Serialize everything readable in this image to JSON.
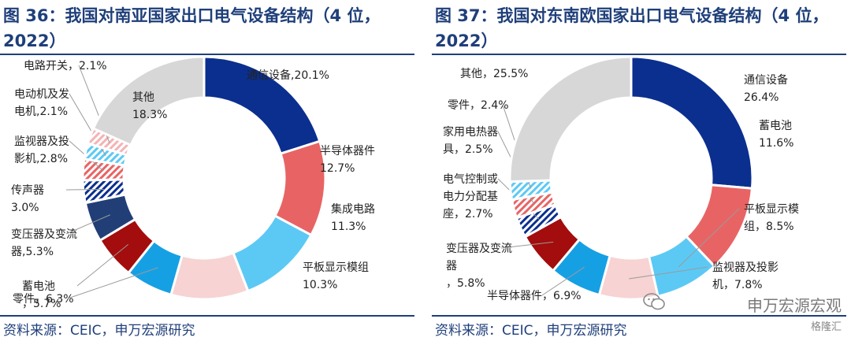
{
  "charts": [
    {
      "title": "图 36：我国对南亚国家出口电气设备结构（4 位，2022）",
      "source": "资料来源：CEIC，申万宏源研究",
      "chart_data": {
        "type": "donut",
        "slices": [
          {
            "label": "通信设备,20.1%",
            "value": 20.1,
            "color": "#0b2f8f",
            "pattern": false
          },
          {
            "label": "半导体器件 12.7%",
            "value": 12.7,
            "color": "#e86464",
            "pattern": false
          },
          {
            "label": "集成电路 11.3%",
            "value": 11.3,
            "color": "#5cc9f5",
            "pattern": false
          },
          {
            "label": "平板显示模组 10.3%",
            "value": 10.3,
            "color": "#f7d3d3",
            "pattern": false
          },
          {
            "label": "零件，6.3%",
            "value": 6.3,
            "color": "#16a0e4",
            "pattern": false
          },
          {
            "label": "蓄电池 ，5.7%",
            "value": 5.7,
            "color": "#a30d0d",
            "pattern": false
          },
          {
            "label": "变压器及变流 器,5.3%",
            "value": 5.3,
            "color": "#213f76",
            "pattern": false
          },
          {
            "label": "传声器 3.0%",
            "value": 3.0,
            "color": "#0b2f8f",
            "pattern": true
          },
          {
            "label": "监视器及投 影机,2.8%",
            "value": 2.8,
            "color": "#e86464",
            "pattern": true
          },
          {
            "label": "电动机及发 电机,2.1%",
            "value": 2.1,
            "color": "#5cc9f5",
            "pattern": true
          },
          {
            "label": "电路开关，2.1%",
            "value": 2.1,
            "color": "#f4b4b4",
            "pattern": true
          },
          {
            "label": "其他 18.3%",
            "value": 18.3,
            "color": "#d7d7d7",
            "pattern": false
          }
        ]
      }
    },
    {
      "title": "图 37：我国对东南欧国家出口电气设备结构（4 位，2022）",
      "source": "资料来源：CEIC，申万宏源研究",
      "chart_data": {
        "type": "donut",
        "slices": [
          {
            "label": "通信设备 26.4%",
            "value": 26.4,
            "color": "#0b2f8f",
            "pattern": false
          },
          {
            "label": "蓄电池 11.6%",
            "value": 11.6,
            "color": "#e86464",
            "pattern": false
          },
          {
            "label": "平板显示模 组，8.5%",
            "value": 8.5,
            "color": "#5cc9f5",
            "pattern": false
          },
          {
            "label": "监视器及投影 机，7.8%",
            "value": 7.8,
            "color": "#f7d3d3",
            "pattern": false
          },
          {
            "label": "半导体器件，6.9%",
            "value": 6.9,
            "color": "#16a0e4",
            "pattern": false
          },
          {
            "label": "变压器及变流 器 ，5.8%",
            "value": 5.8,
            "color": "#a30d0d",
            "pattern": false
          },
          {
            "label": "电气控制或 电力分配基 座，2.7%",
            "value": 2.7,
            "color": "#0b2f8f",
            "pattern": true
          },
          {
            "label": "家用电热器 具，2.5%",
            "value": 2.5,
            "color": "#e86464",
            "pattern": true
          },
          {
            "label": "零件，2.4%",
            "value": 2.4,
            "color": "#5cc9f5",
            "pattern": true
          },
          {
            "label": "其他，25.5%",
            "value": 25.5,
            "color": "#d7d7d7",
            "pattern": false
          }
        ]
      }
    }
  ],
  "watermark": "申万宏源宏观",
  "logo": "格隆汇"
}
